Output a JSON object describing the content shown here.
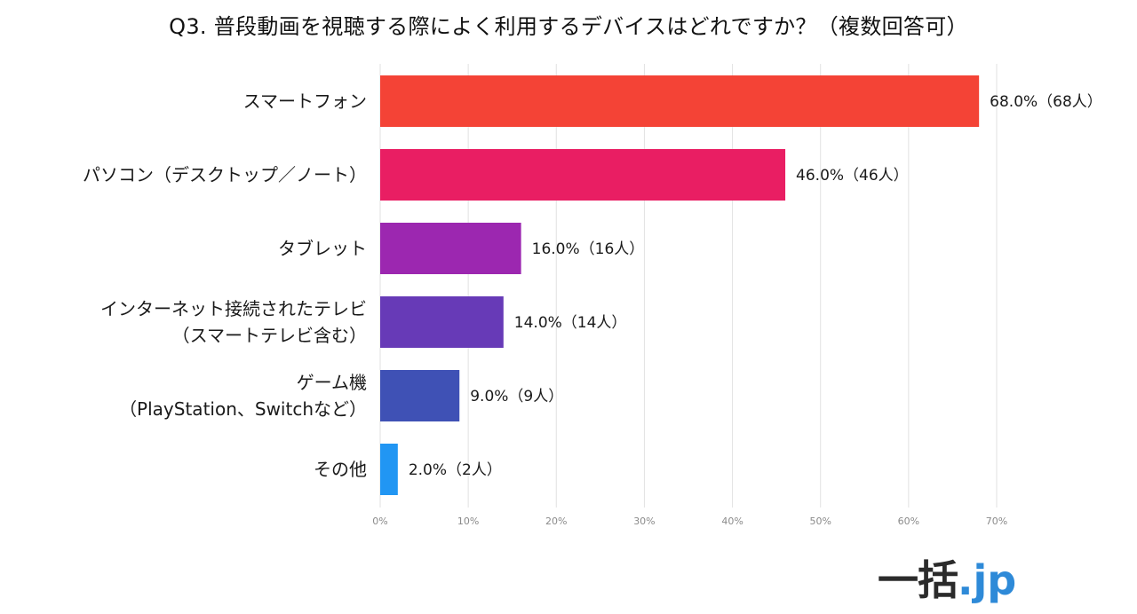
{
  "title": "Q3. 普段動画を視聴する際によく利用するデバイスはどれですか？（複数回答可）",
  "chart_data": {
    "type": "bar",
    "orientation": "horizontal",
    "title": "Q3. 普段動画を視聴する際によく利用するデバイスはどれですか？（複数回答可）",
    "categories": [
      [
        "スマートフォン"
      ],
      [
        "パソコン（デスクトップ／ノート）"
      ],
      [
        "タブレット"
      ],
      [
        "インターネット接続されたテレビ",
        "（スマートテレビ含む）"
      ],
      [
        "ゲーム機",
        "（PlayStation、Switchなど）"
      ],
      [
        "その他"
      ]
    ],
    "values": [
      68.0,
      46.0,
      16.0,
      14.0,
      9.0,
      2.0
    ],
    "data_labels": [
      "68.0%（68人）",
      "46.0%（46人）",
      "16.0%（16人）",
      "14.0%（14人）",
      "9.0%（9人）",
      "2.0%（2人）"
    ],
    "colors": [
      "#f44336",
      "#e91e63",
      "#9c27b0",
      "#673ab7",
      "#3f51b5",
      "#2196f3"
    ],
    "xlim": [
      0,
      70
    ],
    "xticks": [
      "0%",
      "10%",
      "20%",
      "30%",
      "40%",
      "50%",
      "60%",
      "70%"
    ],
    "grid": true
  },
  "logo": {
    "main": "一括",
    "domain": ".jp"
  }
}
